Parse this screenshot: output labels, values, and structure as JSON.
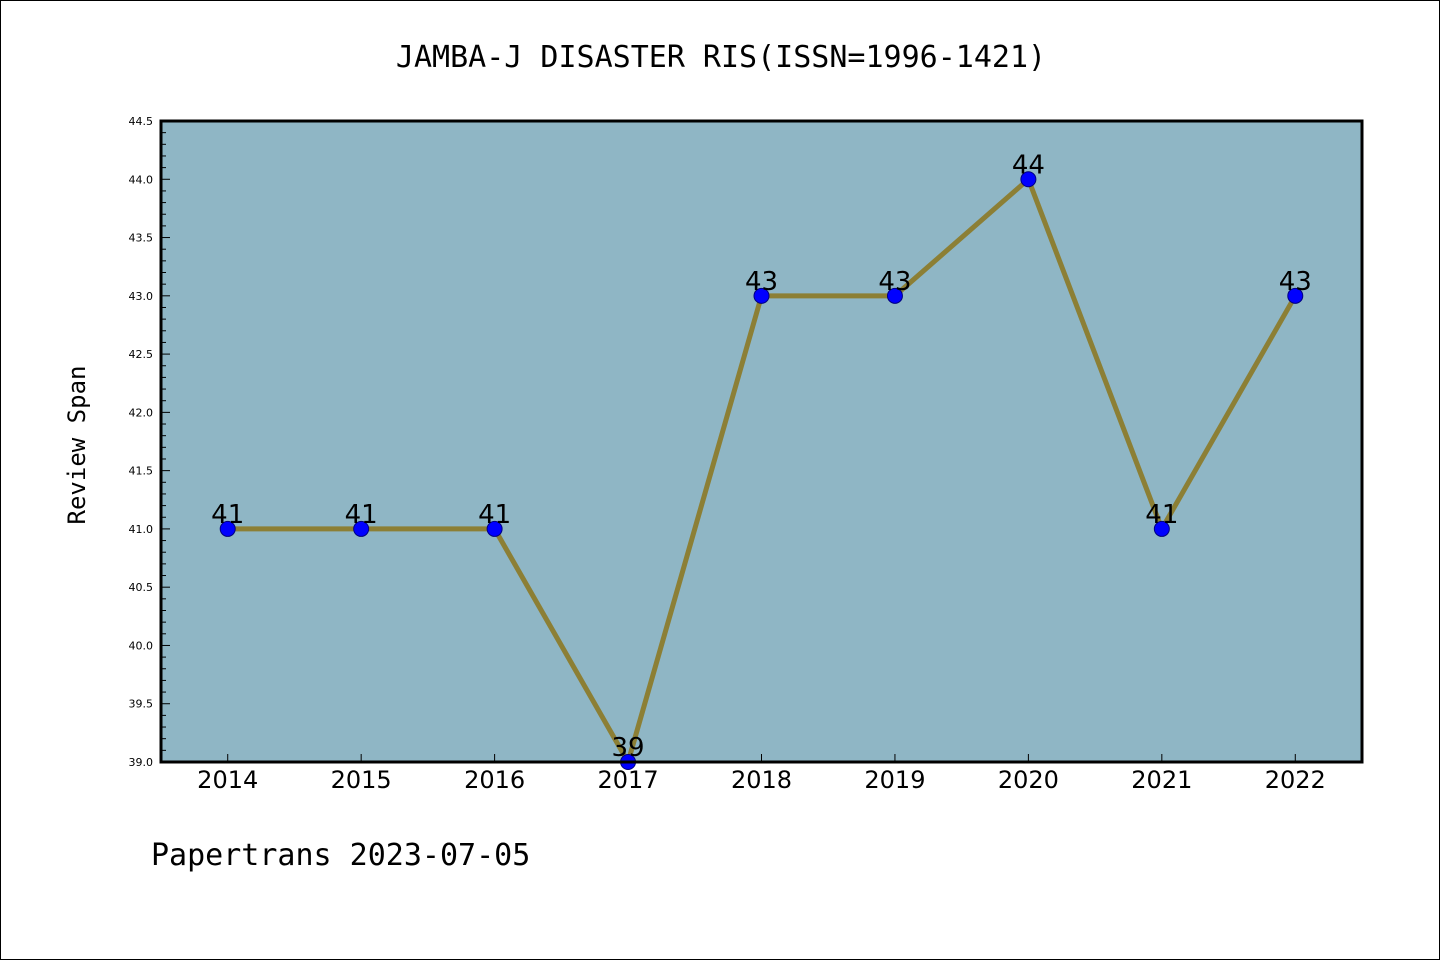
{
  "colors": {
    "plot_background": "#8fb6c5",
    "line": "#8c7f35",
    "marker": "#0000ff",
    "marker_edge": "#000080",
    "axis": "#000000"
  },
  "footer": "Papertrans 2023-07-05",
  "chart_data": {
    "type": "line",
    "title": "JAMBA-J DISASTER RIS(ISSN=1996-1421)",
    "xlabel": "",
    "ylabel": "Review Span",
    "categories": [
      "2014",
      "2015",
      "2016",
      "2017",
      "2018",
      "2019",
      "2020",
      "2021",
      "2022"
    ],
    "series": [
      {
        "values": [
          41,
          41,
          41,
          39,
          43,
          43,
          44,
          41,
          43
        ],
        "labels": [
          "41",
          "41",
          "41",
          "39",
          "43",
          "43",
          "44",
          "41",
          "43"
        ]
      }
    ],
    "ylim": [
      39.0,
      44.5
    ],
    "yticks": [
      "39.0",
      "39.5",
      "40.0",
      "40.5",
      "41.0",
      "41.5",
      "42.0",
      "42.5",
      "43.0",
      "43.5",
      "44.0",
      "44.5"
    ],
    "grid": false,
    "legend": "none"
  }
}
